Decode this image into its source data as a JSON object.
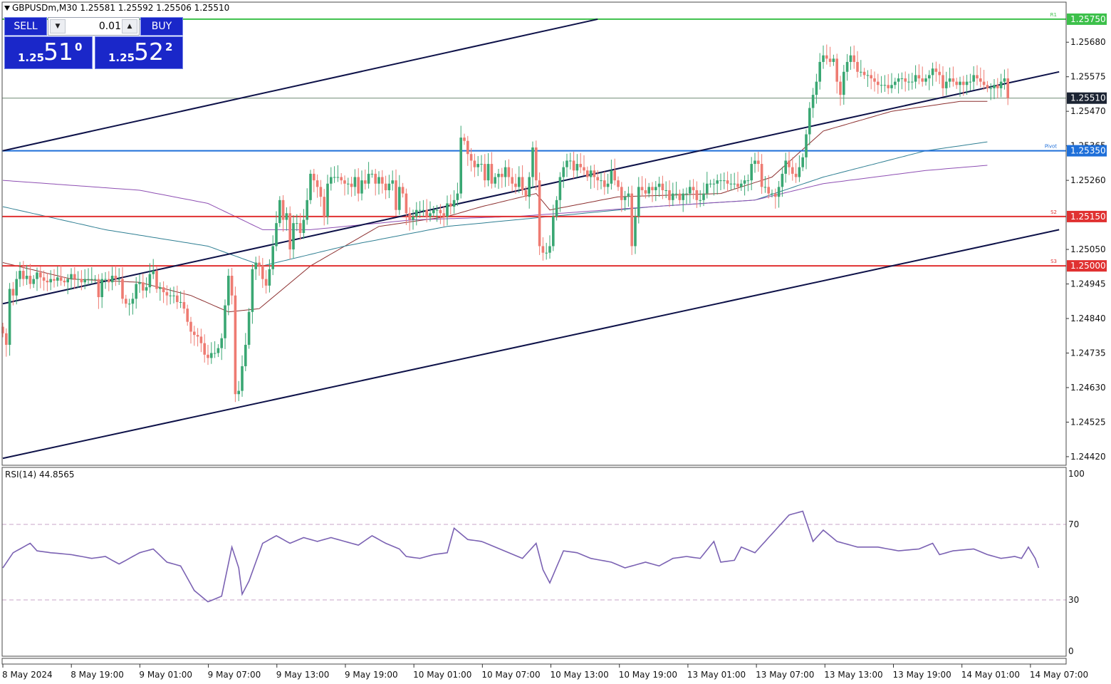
{
  "header": {
    "symbol_line": "GBPUSDm,M30  1.25581 1.25592 1.25506 1.25510"
  },
  "trade_panel": {
    "sell_label": "SELL",
    "buy_label": "BUY",
    "lot_value": "0.01",
    "sell_price_small": "1.25",
    "sell_price_big": "51",
    "sell_price_sup": "0",
    "buy_price_small": "1.25",
    "buy_price_big": "52",
    "buy_price_sup": "2"
  },
  "colors": {
    "bull": "#3aa773",
    "bear": "#ee7b72",
    "channel": "#0d1148",
    "pivot": "#1e6fd9",
    "support": "#e03131",
    "resistance": "#3cc04a",
    "ma_fast": "#8c2f2f",
    "ma_mid": "#2f7f93",
    "ma_slow": "#8e4fb3",
    "rsi": "#7b62b3",
    "current_price_bg": "#1c2433"
  },
  "chart_data": {
    "type": "candlestick",
    "symbol": "GBPUSDm",
    "timeframe": "M30",
    "ohlc_readout": {
      "open": 1.25581,
      "high": 1.25592,
      "low": 1.25506,
      "close": 1.2551
    },
    "price_axis": {
      "ticks": [
        "1.25680",
        "1.25575",
        "1.25470",
        "1.25365",
        "1.25260",
        "1.25050",
        "1.24945",
        "1.24840",
        "1.24735",
        "1.24630",
        "1.24525",
        "1.24420"
      ],
      "range": [
        1.24405,
        1.25765
      ]
    },
    "time_axis": {
      "ticks": [
        "8 May 2024",
        "8 May 19:00",
        "9 May 01:00",
        "9 May 07:00",
        "9 May 13:00",
        "9 May 19:00",
        "10 May 01:00",
        "10 May 07:00",
        "10 May 13:00",
        "10 May 19:00",
        "13 May 01:00",
        "13 May 07:00",
        "13 May 13:00",
        "13 May 19:00",
        "14 May 01:00",
        "14 May 07:00"
      ],
      "bars_between_ticks": 12
    },
    "levels": [
      {
        "price": 1.2575,
        "label": "1.25750",
        "tag": "R1",
        "kind": "resistance"
      },
      {
        "price": 1.2551,
        "label": "1.25510",
        "tag": "",
        "kind": "current"
      },
      {
        "price": 1.2535,
        "label": "1.25350",
        "tag": "Pivot",
        "kind": "pivot"
      },
      {
        "price": 1.2515,
        "label": "1.25150",
        "tag": "S2",
        "kind": "support"
      },
      {
        "price": 1.25,
        "label": "1.25000",
        "tag": "S3",
        "kind": "support"
      }
    ],
    "channel": {
      "upper": [
        [
          0,
          1.2535
        ],
        [
          174,
          1.2575
        ]
      ],
      "middle": [
        [
          0,
          1.24885
        ],
        [
          309,
          1.2559
        ]
      ],
      "lower": [
        [
          0,
          1.24415
        ],
        [
          309,
          1.2511
        ]
      ]
    },
    "candles_close": [
      1.24795,
      1.2476,
      1.2493,
      1.2491,
      1.2496,
      1.24985,
      1.2496,
      1.2497,
      1.24945,
      1.2496,
      1.2498,
      1.24965,
      1.24955,
      1.2495,
      1.2496,
      1.24955,
      1.24965,
      1.24955,
      1.2495,
      1.2496,
      1.24975,
      1.2496,
      1.2496,
      1.2495,
      1.2496,
      1.2496,
      1.2496,
      1.2496,
      1.24905,
      1.2496,
      1.2496,
      1.2495,
      1.2497,
      1.2496,
      1.2496,
      1.249,
      1.24885,
      1.24885,
      1.249,
      1.24945,
      1.2495,
      1.24925,
      1.24935,
      1.24975,
      1.24985,
      1.2493,
      1.24935,
      1.2492,
      1.2491,
      1.2491,
      1.2491,
      1.2489,
      1.2489,
      1.2487,
      1.2483,
      1.248,
      1.2479,
      1.24785,
      1.24765,
      1.2473,
      1.2472,
      1.24735,
      1.24735,
      1.2475,
      1.2478,
      1.2488,
      1.2497,
      1.2491,
      1.2461,
      1.2462,
      1.24695,
      1.2476,
      1.2486,
      1.2499,
      1.2501,
      1.25,
      1.2496,
      1.2494,
      1.2499,
      1.2506,
      1.2513,
      1.252,
      1.2514,
      1.2516,
      1.2505,
      1.2513,
      1.2513,
      1.251,
      1.2514,
      1.252,
      1.2528,
      1.2526,
      1.2524,
      1.2521,
      1.2515,
      1.2525,
      1.2527,
      1.2527,
      1.2527,
      1.2526,
      1.2525,
      1.2525,
      1.2524,
      1.2527,
      1.2522,
      1.2526,
      1.2525,
      1.2528,
      1.2528,
      1.2525,
      1.2527,
      1.2525,
      1.2523,
      1.2525,
      1.2526,
      1.2517,
      1.2524,
      1.2522,
      1.2516,
      1.2514,
      1.2515,
      1.2517,
      1.2517,
      1.2517,
      1.2515,
      1.2516,
      1.2517,
      1.2517,
      1.2516,
      1.2515,
      1.2519,
      1.2518,
      1.252,
      1.2522,
      1.2539,
      1.2538,
      1.2534,
      1.2532,
      1.253,
      1.2531,
      1.2531,
      1.2526,
      1.2531,
      1.2525,
      1.2527,
      1.2528,
      1.2527,
      1.253,
      1.2527,
      1.2525,
      1.2524,
      1.2527,
      1.2523,
      1.2521,
      1.2527,
      1.2536,
      1.2526,
      1.2506,
      1.2504,
      1.2504,
      1.2506,
      1.2515,
      1.252,
      1.2527,
      1.253,
      1.2532,
      1.2532,
      1.2529,
      1.2531,
      1.253,
      1.2529,
      1.2527,
      1.2529,
      1.2527,
      1.2526,
      1.2526,
      1.2524,
      1.2525,
      1.2529,
      1.2526,
      1.2524,
      1.252,
      1.2521,
      1.2522,
      1.2506,
      1.2515,
      1.2524,
      1.2523,
      1.2522,
      1.2524,
      1.2523,
      1.2524,
      1.2525,
      1.2523,
      1.2523,
      1.252,
      1.2522,
      1.2522,
      1.252,
      1.2522,
      1.2522,
      1.2524,
      1.2523,
      1.252,
      1.252,
      1.2522,
      1.2525,
      1.2525,
      1.2525,
      1.2526,
      1.2526,
      1.2526,
      1.2525,
      1.2525,
      1.2525,
      1.2524,
      1.2525,
      1.2526,
      1.2526,
      1.2531,
      1.2532,
      1.2531,
      1.2524,
      1.2524,
      1.2522,
      1.2522,
      1.2521,
      1.2524,
      1.2528,
      1.2532,
      1.253,
      1.2528,
      1.2527,
      1.253,
      1.2533,
      1.254,
      1.2548,
      1.2552,
      1.2556,
      1.2562,
      1.2564,
      1.2563,
      1.2562,
      1.2563,
      1.2556,
      1.2552,
      1.2559,
      1.2562,
      1.2564,
      1.2562,
      1.2559,
      1.2559,
      1.2558,
      1.2558,
      1.2557,
      1.2556,
      1.2555,
      1.2555,
      1.2555,
      1.2554,
      1.2555,
      1.2556,
      1.2557,
      1.2557,
      1.2556,
      1.2556,
      1.2556,
      1.2558,
      1.2557,
      1.2556,
      1.2557,
      1.2558,
      1.256,
      1.2559,
      1.2558,
      1.2554,
      1.2556,
      1.2557,
      1.2556,
      1.2555,
      1.2556,
      1.2555,
      1.2556,
      1.2556,
      1.2558,
      1.2557,
      1.2556,
      1.2555,
      1.2554,
      1.2554,
      1.2555,
      1.2554,
      1.2556,
      1.2557,
      1.2551
    ],
    "rsi": {
      "label": "RSI(14) 44.8565",
      "period": 14,
      "value": 44.8565,
      "levels": [
        70,
        30
      ],
      "ticks": [
        "100",
        "70",
        "30",
        "0"
      ],
      "range": [
        0,
        100
      ],
      "key_points": [
        [
          0,
          47
        ],
        [
          3,
          55
        ],
        [
          8,
          60
        ],
        [
          10,
          56
        ],
        [
          14,
          55
        ],
        [
          20,
          54
        ],
        [
          26,
          52
        ],
        [
          30,
          53
        ],
        [
          34,
          49
        ],
        [
          40,
          55
        ],
        [
          44,
          57
        ],
        [
          48,
          50
        ],
        [
          52,
          48
        ],
        [
          56,
          35
        ],
        [
          60,
          29
        ],
        [
          64,
          32
        ],
        [
          67,
          58
        ],
        [
          69,
          47
        ],
        [
          70,
          33
        ],
        [
          72,
          40
        ],
        [
          76,
          60
        ],
        [
          80,
          64
        ],
        [
          84,
          60
        ],
        [
          88,
          63
        ],
        [
          92,
          61
        ],
        [
          96,
          63
        ],
        [
          100,
          61
        ],
        [
          104,
          59
        ],
        [
          108,
          64
        ],
        [
          112,
          60
        ],
        [
          116,
          57
        ],
        [
          118,
          53
        ],
        [
          122,
          52
        ],
        [
          126,
          54
        ],
        [
          130,
          55
        ],
        [
          132,
          68
        ],
        [
          136,
          62
        ],
        [
          140,
          61
        ],
        [
          144,
          58
        ],
        [
          148,
          55
        ],
        [
          152,
          52
        ],
        [
          156,
          60
        ],
        [
          158,
          46
        ],
        [
          160,
          39
        ],
        [
          164,
          56
        ],
        [
          168,
          55
        ],
        [
          172,
          52
        ],
        [
          178,
          50
        ],
        [
          182,
          47
        ],
        [
          188,
          50
        ],
        [
          192,
          48
        ],
        [
          196,
          52
        ],
        [
          200,
          53
        ],
        [
          204,
          52
        ],
        [
          208,
          61
        ],
        [
          210,
          50
        ],
        [
          214,
          51
        ],
        [
          216,
          58
        ],
        [
          220,
          55
        ],
        [
          226,
          67
        ],
        [
          230,
          75
        ],
        [
          234,
          77
        ],
        [
          237,
          61
        ],
        [
          240,
          67
        ],
        [
          244,
          61
        ],
        [
          250,
          58
        ],
        [
          256,
          58
        ],
        [
          262,
          56
        ],
        [
          268,
          57
        ],
        [
          272,
          60
        ],
        [
          274,
          54
        ],
        [
          278,
          56
        ],
        [
          284,
          57
        ],
        [
          288,
          54
        ],
        [
          292,
          52
        ],
        [
          296,
          53
        ],
        [
          298,
          52
        ],
        [
          300,
          58
        ],
        [
          302,
          52
        ],
        [
          303,
          47
        ]
      ]
    },
    "moving_averages": [
      {
        "color_key": "ma_fast",
        "key_points": [
          [
            0,
            1.2501
          ],
          [
            20,
            1.2496
          ],
          [
            40,
            1.2495
          ],
          [
            55,
            1.2491
          ],
          [
            66,
            1.2486
          ],
          [
            75,
            1.2487
          ],
          [
            90,
            1.25
          ],
          [
            110,
            1.2512
          ],
          [
            130,
            1.2515
          ],
          [
            140,
            1.2518
          ],
          [
            156,
            1.2522
          ],
          [
            160,
            1.2517
          ],
          [
            180,
            1.2521
          ],
          [
            210,
            1.2522
          ],
          [
            225,
            1.2527
          ],
          [
            240,
            1.2541
          ],
          [
            260,
            1.2547
          ],
          [
            280,
            1.255
          ],
          [
            304,
            1.255
          ]
        ]
      },
      {
        "color_key": "ma_mid",
        "key_points": [
          [
            0,
            1.2518
          ],
          [
            30,
            1.2511
          ],
          [
            60,
            1.2506
          ],
          [
            76,
            1.25
          ],
          [
            100,
            1.2506
          ],
          [
            130,
            1.2512
          ],
          [
            160,
            1.2515
          ],
          [
            190,
            1.2518
          ],
          [
            220,
            1.252
          ],
          [
            240,
            1.2527
          ],
          [
            270,
            1.2535
          ],
          [
            290,
            1.2538
          ],
          [
            304,
            1.254
          ]
        ]
      },
      {
        "color_key": "ma_slow",
        "key_points": [
          [
            0,
            1.2526
          ],
          [
            40,
            1.2523
          ],
          [
            60,
            1.2519
          ],
          [
            76,
            1.2511
          ],
          [
            90,
            1.2511
          ],
          [
            120,
            1.2514
          ],
          [
            150,
            1.2515
          ],
          [
            190,
            1.2518
          ],
          [
            220,
            1.252
          ],
          [
            240,
            1.2525
          ],
          [
            270,
            1.2529
          ],
          [
            304,
            1.2532
          ]
        ]
      }
    ]
  }
}
